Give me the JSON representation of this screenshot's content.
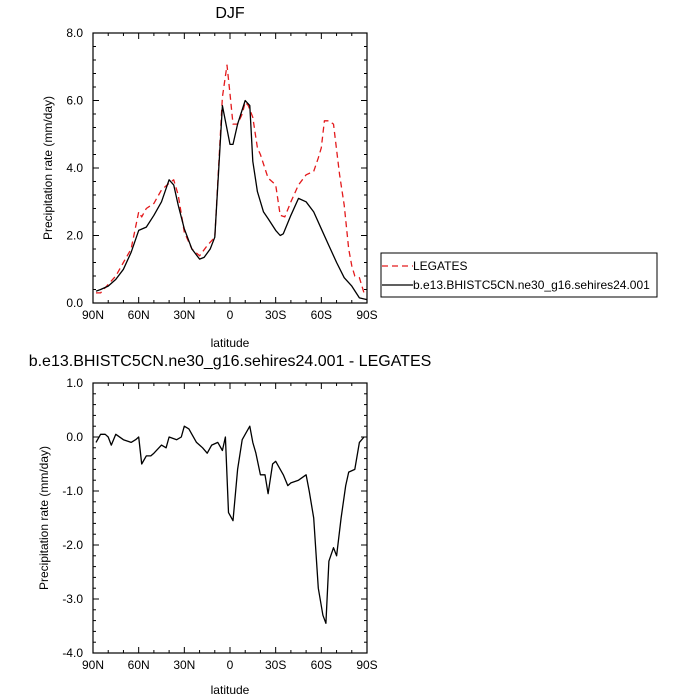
{
  "chart_data": [
    {
      "type": "line",
      "title": "DJF",
      "xlabel": "latitude",
      "ylabel": "Precipitation rate (mm/day)",
      "xlim": [
        90,
        -90
      ],
      "ylim": [
        0,
        8
      ],
      "x_tick_values": [
        90,
        60,
        30,
        0,
        -30,
        -60,
        -90
      ],
      "x_tick_labels": [
        "90N",
        "60N",
        "30N",
        "0",
        "30S",
        "60S",
        "90S"
      ],
      "y_tick_values": [
        0,
        2,
        4,
        6,
        8
      ],
      "y_tick_labels": [
        "0.0",
        "2.0",
        "4.0",
        "6.0",
        "8.0"
      ],
      "legend_position": "right",
      "series": [
        {
          "name": "LEGATES",
          "color": "#e31a1c",
          "dash": "dashed",
          "x": [
            88,
            85,
            80,
            75,
            70,
            65,
            60,
            58,
            55,
            50,
            45,
            40,
            37,
            34,
            30,
            25,
            20,
            15,
            10,
            5,
            2,
            0,
            -2,
            -5,
            -8,
            -10,
            -12,
            -15,
            -18,
            -20,
            -25,
            -30,
            -33,
            -36,
            -40,
            -45,
            -50,
            -55,
            -58,
            -60,
            -62,
            -65,
            -68,
            -72,
            -75,
            -78,
            -80,
            -82,
            -85,
            -88
          ],
          "y": [
            0.3,
            0.3,
            0.55,
            0.8,
            1.2,
            1.6,
            2.7,
            2.55,
            2.8,
            2.95,
            3.35,
            3.55,
            3.65,
            3.2,
            2.1,
            1.6,
            1.4,
            1.7,
            1.95,
            6.1,
            7.05,
            6.2,
            5.3,
            5.3,
            5.6,
            5.95,
            5.85,
            5.5,
            4.6,
            4.4,
            3.7,
            3.5,
            2.6,
            2.55,
            3.0,
            3.5,
            3.8,
            3.9,
            4.3,
            4.6,
            5.4,
            5.4,
            5.3,
            3.8,
            2.9,
            1.6,
            1.1,
            0.8,
            0.75,
            0.3
          ]
        },
        {
          "name": "b.e13.BHISTC5CN.ne30_g16.sehires24.001",
          "color": "#000000",
          "dash": "solid",
          "x": [
            88,
            85,
            80,
            75,
            70,
            65,
            60,
            55,
            50,
            45,
            40,
            37,
            34,
            30,
            25,
            20,
            17,
            13,
            10,
            5,
            0,
            -2,
            -5,
            -10,
            -13,
            -15,
            -18,
            -22,
            -25,
            -30,
            -33,
            -35,
            -40,
            -45,
            -50,
            -55,
            -60,
            -65,
            -70,
            -75,
            -80,
            -85,
            -90
          ],
          "y": [
            0.35,
            0.4,
            0.5,
            0.7,
            1.0,
            1.5,
            2.15,
            2.25,
            2.6,
            3.0,
            3.65,
            3.5,
            2.9,
            2.2,
            1.6,
            1.3,
            1.35,
            1.6,
            1.95,
            5.85,
            4.7,
            4.7,
            5.3,
            6.0,
            5.85,
            4.2,
            3.3,
            2.7,
            2.5,
            2.15,
            2.0,
            2.05,
            2.6,
            3.1,
            3.0,
            2.7,
            2.2,
            1.7,
            1.2,
            0.75,
            0.5,
            0.15,
            0.1
          ]
        }
      ]
    },
    {
      "type": "line",
      "title": "b.e13.BHISTC5CN.ne30_g16.sehires24.001 - LEGATES",
      "xlabel": "latitude",
      "ylabel": "Precipitation rate (mm/day)",
      "xlim": [
        90,
        -90
      ],
      "ylim": [
        -4,
        1
      ],
      "x_tick_values": [
        90,
        60,
        30,
        0,
        -30,
        -60,
        -90
      ],
      "x_tick_labels": [
        "90N",
        "60N",
        "30N",
        "0",
        "30S",
        "60S",
        "90S"
      ],
      "y_tick_values": [
        -4,
        -3,
        -2,
        -1,
        0,
        1
      ],
      "y_tick_labels": [
        "-4.0",
        "-3.0",
        "-2.0",
        "-1.0",
        "0.0",
        "1.0"
      ],
      "series": [
        {
          "color": "#000000",
          "dash": "solid",
          "x": [
            88,
            85,
            82,
            80,
            78,
            75,
            70,
            65,
            62,
            60,
            58,
            55,
            52,
            50,
            45,
            42,
            40,
            35,
            32,
            30,
            27,
            25,
            22,
            20,
            18,
            15,
            12,
            8,
            5,
            3,
            1,
            -2,
            -5,
            -8,
            -10,
            -13,
            -15,
            -17,
            -20,
            -23,
            -25,
            -28,
            -30,
            -35,
            -38,
            -40,
            -45,
            -50,
            -52,
            -55,
            -58,
            -61,
            -63,
            -65,
            -68,
            -70,
            -73,
            -76,
            -78,
            -82,
            -85,
            -88
          ],
          "y": [
            -0.1,
            0.05,
            0.05,
            0.0,
            -0.15,
            0.05,
            -0.05,
            -0.1,
            -0.05,
            0.0,
            -0.5,
            -0.35,
            -0.35,
            -0.3,
            -0.15,
            -0.2,
            0.0,
            -0.05,
            0.0,
            0.2,
            0.15,
            0.05,
            -0.1,
            -0.15,
            -0.2,
            -0.3,
            -0.15,
            -0.1,
            -0.25,
            0.0,
            -1.4,
            -1.55,
            -0.6,
            -0.05,
            0.05,
            0.2,
            -0.1,
            -0.3,
            -0.7,
            -0.7,
            -1.05,
            -0.5,
            -0.45,
            -0.7,
            -0.9,
            -0.85,
            -0.8,
            -0.7,
            -1.0,
            -1.5,
            -2.8,
            -3.3,
            -3.45,
            -2.3,
            -2.05,
            -2.2,
            -1.5,
            -0.9,
            -0.65,
            -0.6,
            -0.1,
            0.0
          ]
        }
      ]
    }
  ]
}
